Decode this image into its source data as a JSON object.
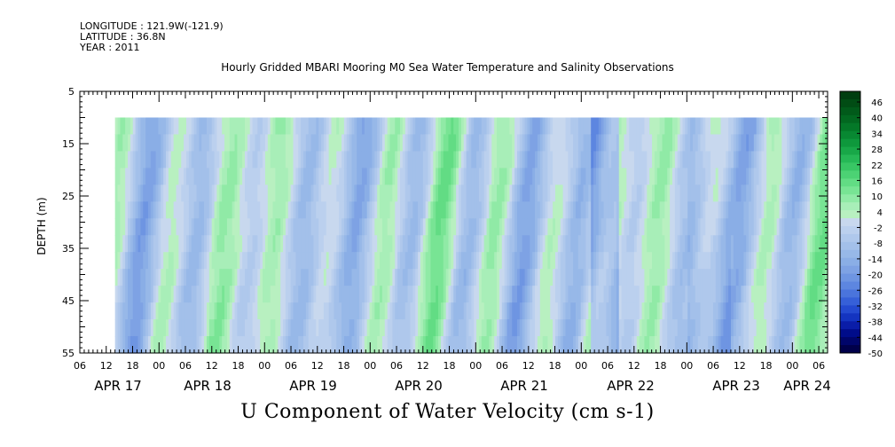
{
  "header": {
    "longitude": "LONGITUDE : 121.9W(-121.9)",
    "latitude": "LATITUDE : 36.8N",
    "year": "YEAR : 2011"
  },
  "chart_data": {
    "type": "heatmap",
    "title": "Hourly Gridded MBARI Mooring M0 Sea Water Temperature and Salinity Observations",
    "subtitle": "U Component of Water Velocity (cm s-1)",
    "ylabel": "DEPTH (m)",
    "ylim": [
      55,
      5
    ],
    "y_ticks": [
      "5",
      "15",
      "25",
      "35",
      "45",
      "55"
    ],
    "x_hour_ticks": [
      "06",
      "12",
      "18",
      "00",
      "06",
      "12",
      "18",
      "00",
      "06",
      "12",
      "18",
      "00",
      "06",
      "12",
      "18",
      "00",
      "06",
      "12",
      "18",
      "00",
      "06",
      "12",
      "18",
      "00",
      "06",
      "12",
      "18",
      "00",
      "06"
    ],
    "date_labels": [
      "APR 17",
      "APR 18",
      "APR 19",
      "APR 20",
      "APR 21",
      "APR 22",
      "APR 23",
      "APR 24"
    ],
    "data_start_hour": 14,
    "data_top_depth": 10,
    "colorbar": {
      "labels": [
        "46",
        "40",
        "34",
        "28",
        "22",
        "16",
        "10",
        "4",
        "-2",
        "-8",
        "-14",
        "-20",
        "-26",
        "-32",
        "-38",
        "-44",
        "-50"
      ],
      "levels": [
        -50,
        -47,
        -44,
        -41,
        -38,
        -35,
        -32,
        -29,
        -26,
        -23,
        -20,
        -17,
        -14,
        -11,
        -8,
        -5,
        -2,
        1,
        4,
        7,
        10,
        13,
        16,
        19,
        22,
        25,
        28,
        31,
        34,
        37,
        40,
        43,
        46,
        49
      ],
      "colors": [
        "#00004a",
        "#00056a",
        "#000c8a",
        "#0a1da8",
        "#1434c0",
        "#244ad0",
        "#3660d8",
        "#4a74dc",
        "#5d86e0",
        "#6e95e2",
        "#7ea2e4",
        "#8aaee6",
        "#97b8e8",
        "#a3c0ea",
        "#afc8ec",
        "#bbd0ee",
        "#c8d8ee",
        "#b8f0c0",
        "#a8eeb8",
        "#90eaa6",
        "#78e494",
        "#62dc84",
        "#4cd274",
        "#38c664",
        "#26b856",
        "#18a848",
        "#0e983c",
        "#088832",
        "#047828",
        "#026820",
        "#015a1a",
        "#014c14",
        "#003e10"
      ]
    }
  }
}
